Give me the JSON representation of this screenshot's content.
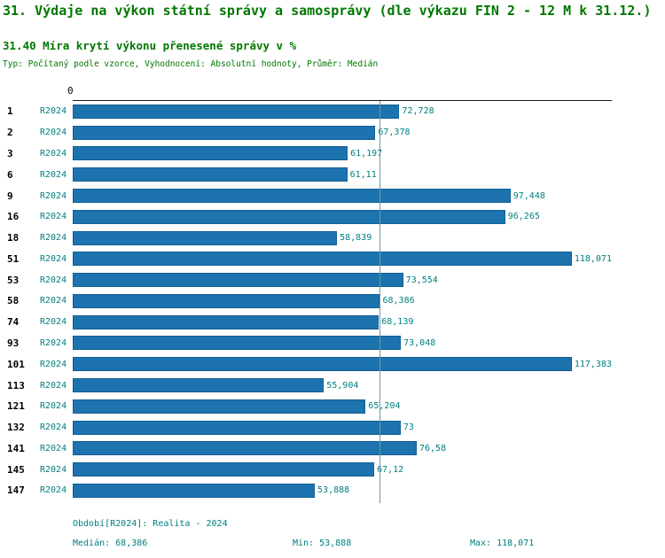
{
  "header": {
    "title": "31. Výdaje na výkon státní správy a samosprávy (dle výkazu FIN 2 - 12 M k 31.12.)",
    "subtitle": "31.40 Míra krytí výkonu přenesené správy v %",
    "meta": "Typ: Počítaný podle vzorce, Vyhodnocení: Absolutní hodnoty, Průměr: Medián"
  },
  "axis": {
    "zero_label": "0"
  },
  "colors": {
    "heading": "#007700",
    "label": "#008080",
    "bar": "#1c73ae",
    "bar_border": "#135f93",
    "median_line": "#7296a4",
    "axis": "#1a1a1a"
  },
  "footer": {
    "period": "Období[R2024]: Realita - 2024",
    "median_label": "Medián: 68,386",
    "min_label": "Min: 53,888",
    "max_label": "Max: 118,071"
  },
  "chart_data": {
    "type": "bar",
    "orientation": "horizontal",
    "title": "31.40 Míra krytí výkonu přenesené správy v %",
    "xlabel": "",
    "ylabel": "",
    "categories": [
      "1",
      "2",
      "3",
      "6",
      "9",
      "16",
      "18",
      "51",
      "53",
      "58",
      "74",
      "93",
      "101",
      "113",
      "121",
      "132",
      "141",
      "145",
      "147"
    ],
    "series": [
      {
        "name": "R2024",
        "values": [
          72.728,
          67.378,
          61.197,
          61.11,
          97.448,
          96.265,
          58.839,
          118.071,
          73.554,
          68.386,
          68.139,
          73.048,
          117.383,
          55.904,
          65.204,
          73,
          76.58,
          67.12,
          53.888
        ]
      }
    ],
    "value_labels": [
      "72,728",
      "67,378",
      "61,197",
      "61,11",
      "97,448",
      "96,265",
      "58,839",
      "118,071",
      "73,554",
      "68,386",
      "68,139",
      "73,048",
      "117,383",
      "55,904",
      "65,204",
      "73",
      "76,58",
      "67,12",
      "53,888"
    ],
    "xlim": [
      0,
      120
    ],
    "median": 68.386,
    "min": 53.888,
    "max": 118.071,
    "grid": false,
    "legend": false
  }
}
